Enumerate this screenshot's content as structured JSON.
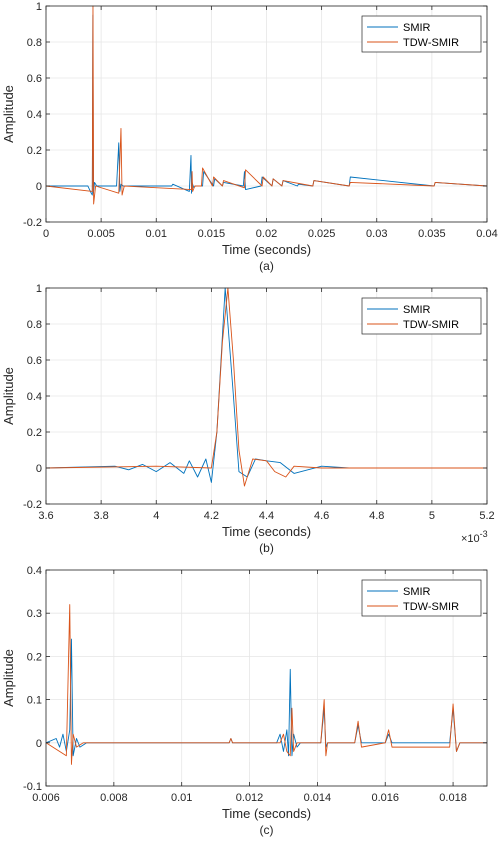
{
  "chart_data": [
    {
      "type": "line",
      "caption": "(a)",
      "xlabel": "Time (seconds)",
      "ylabel": "Amplitude",
      "xlim": [
        0,
        0.04
      ],
      "ylim": [
        -0.2,
        1
      ],
      "xticks": [
        0,
        0.005,
        0.01,
        0.015,
        0.02,
        0.025,
        0.03,
        0.035,
        0.04
      ],
      "xtick_labels": [
        "0",
        "0.005",
        "0.01",
        "0.015",
        "0.02",
        "0.025",
        "0.03",
        "0.035",
        "0.04"
      ],
      "yticks": [
        -0.2,
        0,
        0.2,
        0.4,
        0.6,
        0.8,
        1
      ],
      "ytick_labels": [
        "-0.2",
        "0",
        "0.2",
        "0.4",
        "0.6",
        "0.8",
        "1"
      ],
      "grid": true,
      "legend_position": "top-right",
      "series": [
        {
          "name": "SMIR",
          "color": "#0072BD",
          "x": [
            0,
            0.0038,
            0.0041,
            0.0042,
            0.00425,
            0.0043,
            0.0044,
            0.0046,
            0.0064,
            0.0066,
            0.0067,
            0.0068,
            0.007,
            0.0114,
            0.0115,
            0.013,
            0.01315,
            0.0132,
            0.01325,
            0.0134,
            0.01355,
            0.0142,
            0.0143,
            0.0152,
            0.0153,
            0.016,
            0.0161,
            0.0179,
            0.018,
            0.0181,
            0.0195,
            0.0196,
            0.0205,
            0.0206,
            0.0214,
            0.0215,
            0.0228,
            0.0229,
            0.0242,
            0.0243,
            0.0275,
            0.0276,
            0.0352,
            0.0353,
            0.04
          ],
          "y": [
            0,
            0,
            -0.04,
            -0.05,
            0.95,
            -0.04,
            0.02,
            0,
            0,
            0.24,
            -0.03,
            0.01,
            0,
            0,
            0.01,
            -0.03,
            0.17,
            -0.04,
            0.02,
            -0.01,
            0,
            0,
            0.08,
            0,
            0.04,
            0,
            0.02,
            0,
            0.08,
            -0.02,
            0,
            0.05,
            0,
            0.04,
            0,
            0.03,
            0,
            0.01,
            0,
            0.03,
            0,
            0.05,
            0,
            0.02,
            0
          ]
        },
        {
          "name": "TDW-SMIR",
          "color": "#D95319",
          "x": [
            0,
            0.0042,
            0.00426,
            0.00432,
            0.0045,
            0.0066,
            0.0068,
            0.0069,
            0.0071,
            0.0132,
            0.01325,
            0.0133,
            0.0135,
            0.0141,
            0.0142,
            0.0151,
            0.0152,
            0.016,
            0.0161,
            0.018,
            0.0181,
            0.0196,
            0.0197,
            0.0205,
            0.0206,
            0.0214,
            0.0215,
            0.0242,
            0.0243,
            0.0275,
            0.0276,
            0.0352,
            0.0353,
            0.04
          ],
          "y": [
            0,
            -0.03,
            1.0,
            -0.1,
            0,
            -0.04,
            0.32,
            -0.05,
            0,
            -0.02,
            0.08,
            -0.03,
            0,
            0,
            0.1,
            0,
            0.05,
            0,
            0.03,
            -0.01,
            0.09,
            0,
            0.05,
            0,
            0.04,
            0,
            0.03,
            0,
            0.03,
            0,
            0.02,
            0,
            0.02,
            0
          ]
        }
      ]
    },
    {
      "type": "line",
      "caption": "(b)",
      "xlabel": "Time (seconds)",
      "ylabel": "Amplitude",
      "xlim": [
        0.0036,
        0.0052
      ],
      "ylim": [
        -0.2,
        1
      ],
      "xticks": [
        0.0036,
        0.0038,
        0.004,
        0.0042,
        0.0044,
        0.0046,
        0.0048,
        0.005,
        0.0052
      ],
      "xtick_labels": [
        "3.6",
        "3.8",
        "4",
        "4.2",
        "4.4",
        "4.6",
        "4.8",
        "5",
        "5.2"
      ],
      "yticks": [
        -0.2,
        0,
        0.2,
        0.4,
        0.6,
        0.8,
        1
      ],
      "ytick_labels": [
        "-0.2",
        "0",
        "0.2",
        "0.4",
        "0.6",
        "0.8",
        "1"
      ],
      "x_exponent_label": "×10",
      "x_exponent": "-3",
      "grid": true,
      "legend_position": "top-right",
      "series": [
        {
          "name": "SMIR",
          "color": "#0072BD",
          "x": [
            0.0036,
            0.00385,
            0.0039,
            0.00395,
            0.004,
            0.00405,
            0.0041,
            0.00412,
            0.00415,
            0.00418,
            0.0042,
            0.00422,
            0.00425,
            0.00428,
            0.0043,
            0.00433,
            0.00436,
            0.0044,
            0.00445,
            0.0045,
            0.0046,
            0.0047,
            0.0052
          ],
          "y": [
            0,
            0.01,
            -0.01,
            0.02,
            -0.02,
            0.03,
            -0.03,
            0.04,
            -0.05,
            0.05,
            -0.08,
            0.2,
            1.0,
            0.4,
            -0.02,
            -0.05,
            0.05,
            0.04,
            0.03,
            -0.03,
            0.01,
            0,
            0
          ]
        },
        {
          "name": "TDW-SMIR",
          "color": "#D95319",
          "x": [
            0.0036,
            0.004,
            0.0042,
            0.00422,
            0.00424,
            0.00426,
            0.00428,
            0.0043,
            0.00432,
            0.00435,
            0.0044,
            0.00443,
            0.00447,
            0.0045,
            0.0046,
            0.0052
          ],
          "y": [
            0,
            0.01,
            0,
            0.2,
            0.7,
            1.0,
            0.6,
            0.1,
            -0.1,
            0.05,
            0.04,
            -0.02,
            -0.05,
            0.01,
            0,
            0
          ]
        }
      ]
    },
    {
      "type": "line",
      "caption": "(c)",
      "xlabel": "Time (seconds)",
      "ylabel": "Amplitude",
      "xlim": [
        0.006,
        0.019
      ],
      "ylim": [
        -0.1,
        0.4
      ],
      "xticks": [
        0.006,
        0.008,
        0.01,
        0.012,
        0.014,
        0.016,
        0.018
      ],
      "xtick_labels": [
        "0.006",
        "0.008",
        "0.01",
        "0.012",
        "0.014",
        "0.016",
        "0.018"
      ],
      "yticks": [
        -0.1,
        0,
        0.1,
        0.2,
        0.3,
        0.4
      ],
      "ytick_labels": [
        "-0.1",
        "0",
        "0.1",
        "0.2",
        "0.3",
        "0.4"
      ],
      "grid": true,
      "legend_position": "top-right",
      "series": [
        {
          "name": "SMIR",
          "color": "#0072BD",
          "x": [
            0.006,
            0.0063,
            0.0064,
            0.0065,
            0.0066,
            0.0067,
            0.00675,
            0.0068,
            0.0069,
            0.007,
            0.0072,
            0.0114,
            0.01145,
            0.0115,
            0.0128,
            0.0129,
            0.013,
            0.0131,
            0.01315,
            0.0132,
            0.01325,
            0.0133,
            0.0134,
            0.0135,
            0.0141,
            0.0142,
            0.01425,
            0.0143,
            0.0151,
            0.0152,
            0.0153,
            0.016,
            0.0161,
            0.0162,
            0.0179,
            0.018,
            0.0181,
            0.0182,
            0.019
          ],
          "y": [
            0,
            0.01,
            -0.01,
            0.02,
            -0.02,
            0.03,
            0.24,
            -0.03,
            0.01,
            -0.01,
            0,
            0,
            0.01,
            0,
            0,
            0.02,
            -0.02,
            0.03,
            -0.03,
            0.17,
            -0.03,
            0.02,
            -0.01,
            0,
            0,
            0.08,
            -0.01,
            0,
            0,
            0.04,
            0,
            0,
            0.02,
            0,
            0,
            0.08,
            -0.02,
            0,
            0
          ]
        },
        {
          "name": "TDW-SMIR",
          "color": "#D95319",
          "x": [
            0.006,
            0.0066,
            0.0067,
            0.00675,
            0.0068,
            0.0069,
            0.0071,
            0.0114,
            0.01145,
            0.0115,
            0.0129,
            0.013,
            0.0131,
            0.0132,
            0.01325,
            0.0133,
            0.0134,
            0.0141,
            0.0142,
            0.01425,
            0.0143,
            0.0151,
            0.0152,
            0.0153,
            0.016,
            0.0161,
            0.0162,
            0.0179,
            0.018,
            0.0181,
            0.0182,
            0.019
          ],
          "y": [
            0,
            -0.03,
            0.32,
            -0.05,
            0.02,
            -0.01,
            0,
            0,
            0.01,
            0,
            0,
            0.02,
            -0.02,
            -0.03,
            0.08,
            -0.02,
            0,
            0,
            0.1,
            -0.03,
            0,
            0,
            0.05,
            -0.01,
            0,
            0.03,
            -0.01,
            -0.01,
            0.09,
            -0.02,
            0,
            0
          ]
        }
      ]
    }
  ]
}
